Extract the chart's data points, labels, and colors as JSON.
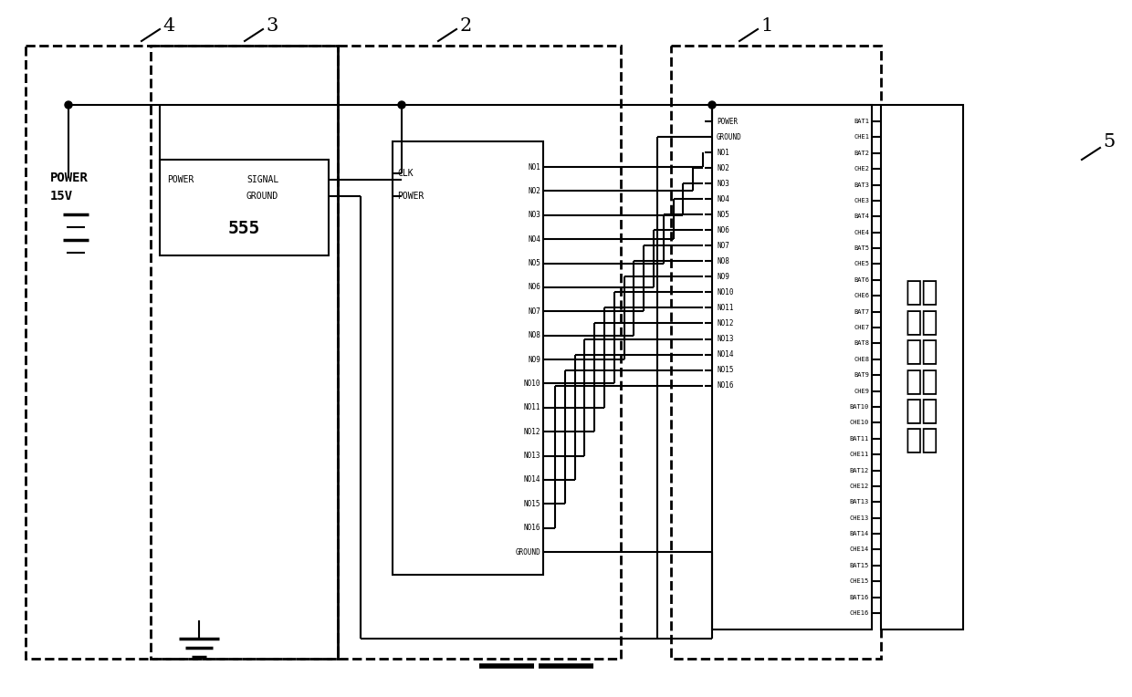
{
  "bg": "#ffffff",
  "lc": "#000000",
  "mux_right_pins": [
    "NO1",
    "NO2",
    "NO3",
    "NO4",
    "NO5",
    "NO6",
    "NO7",
    "NO8",
    "NO9",
    "NO10",
    "NO11",
    "NO12",
    "NO13",
    "NO14",
    "NO15",
    "NO16",
    "GROUND"
  ],
  "mux_left_pins": [
    "CLK",
    "POWER"
  ],
  "conn_left_pins": [
    "POWER",
    "GROUND",
    "NO1",
    "NO2",
    "NO3",
    "NO4",
    "NO5",
    "NO6",
    "NO7",
    "NO8",
    "NO9",
    "NO10",
    "NO11",
    "NO12",
    "NO13",
    "NO14",
    "NO15",
    "NO16"
  ],
  "conn_right_pins": [
    "BAT1",
    "CHE1",
    "BAT2",
    "CHE2",
    "BAT3",
    "CHE3",
    "BAT4",
    "CHE4",
    "BAT5",
    "CHE5",
    "BAT6",
    "CHE6",
    "BAT7",
    "CHE7",
    "BAT8",
    "CHE8",
    "BAT9",
    "CHE9",
    "BAT10",
    "CHE10",
    "BAT11",
    "CHE11",
    "BAT12",
    "CHE12",
    "BAT13",
    "CHE13",
    "BAT14",
    "CHE14",
    "BAT15",
    "CHE15",
    "BAT16",
    "CHE16"
  ],
  "battery_text": "包括\n有多\n个电\n池单\n体的\n电池"
}
